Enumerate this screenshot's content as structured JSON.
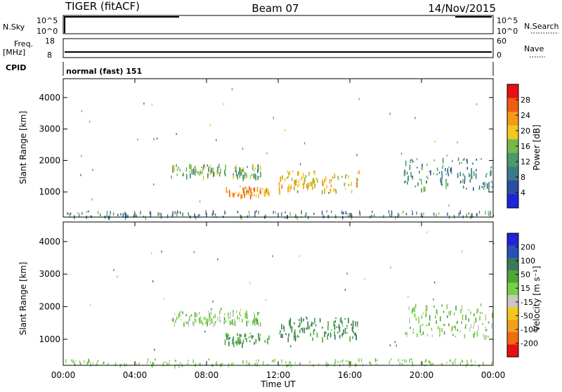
{
  "header": {
    "title": "TIGER (fitACF)",
    "beam": "Beam 07",
    "date": "14/Nov/2015"
  },
  "side_labels": {
    "nsky": "N.Sky",
    "freq": "Freq.",
    "mhz": "[MHz]",
    "cpid": "CPID",
    "nsearch": "N.Search",
    "nave": "Nave"
  },
  "nsky_panel": {
    "left_ticks": [
      "10^5",
      "10^0"
    ],
    "right_ticks": [
      "10^5",
      "10^0"
    ]
  },
  "freq_panel": {
    "left_ticks": [
      "18",
      "8"
    ],
    "right_ticks": [
      "60",
      "0"
    ]
  },
  "cpid_panel": {
    "text": "normal (fast) 151"
  },
  "colors": {
    "power_scale": [
      "#1f24d8",
      "#2c4fa0",
      "#3a7a8c",
      "#4a9a6a",
      "#78b84a",
      "#f2c81e",
      "#f29a1a",
      "#f25b12",
      "#e81010"
    ],
    "velocity_scale": [
      "#1f24d8",
      "#2b4fb8",
      "#3a7a5a",
      "#4aa83a",
      "#78d048",
      "#c8c8c0",
      "#f2c81e",
      "#f2a01a",
      "#f26a12",
      "#e81010"
    ]
  },
  "chart_data": [
    {
      "type": "heatmap",
      "name": "Power",
      "xlabel": "",
      "ylabel": "Slant Range [km]",
      "x_ticks": [
        "00:00",
        "04:00",
        "08:00",
        "12:00",
        "16:00",
        "20:00",
        "00:00"
      ],
      "y_ticks": [
        "1000",
        "2000",
        "3000",
        "4000"
      ],
      "ylim": [
        200,
        4600
      ],
      "colorbar": {
        "label": "Power [dB]",
        "ticks": [
          "4",
          "8",
          "12",
          "16",
          "20",
          "24",
          "28"
        ]
      },
      "approx_regions": [
        {
          "t_start": 6.0,
          "t_end": 11.0,
          "range_start": 1500,
          "range_end": 1900,
          "level_db": 14
        },
        {
          "t_start": 9.0,
          "t_end": 11.5,
          "range_start": 900,
          "range_end": 1200,
          "level_db": 22
        },
        {
          "t_start": 12.0,
          "t_end": 16.5,
          "range_start": 1050,
          "range_end": 1700,
          "level_db": 20
        },
        {
          "t_start": 19.0,
          "t_end": 24.0,
          "range_start": 1100,
          "range_end": 2100,
          "level_db": 10
        }
      ]
    },
    {
      "type": "heatmap",
      "name": "Velocity",
      "xlabel": "Time UT",
      "ylabel": "Slant Range [km]",
      "x_ticks": [
        "00:00",
        "04:00",
        "08:00",
        "12:00",
        "16:00",
        "20:00",
        "00:00"
      ],
      "y_ticks": [
        "1000",
        "2000",
        "3000",
        "4000"
      ],
      "ylim": [
        200,
        4600
      ],
      "colorbar": {
        "label": "Velocity [m s⁻¹]",
        "ticks": [
          "200",
          "100",
          "50",
          "15",
          "-15",
          "-50",
          "-100",
          "-200"
        ]
      },
      "approx_regions": [
        {
          "t_start": 6.0,
          "t_end": 11.0,
          "range_start": 1500,
          "range_end": 1900,
          "level_ms": 0
        },
        {
          "t_start": 9.0,
          "t_end": 11.5,
          "range_start": 900,
          "range_end": 1200,
          "level_ms": 40
        },
        {
          "t_start": 12.0,
          "t_end": 16.5,
          "range_start": 1050,
          "range_end": 1700,
          "level_ms": 60
        },
        {
          "t_start": 19.0,
          "t_end": 24.0,
          "range_start": 1100,
          "range_end": 2100,
          "level_ms": 0
        }
      ]
    }
  ]
}
